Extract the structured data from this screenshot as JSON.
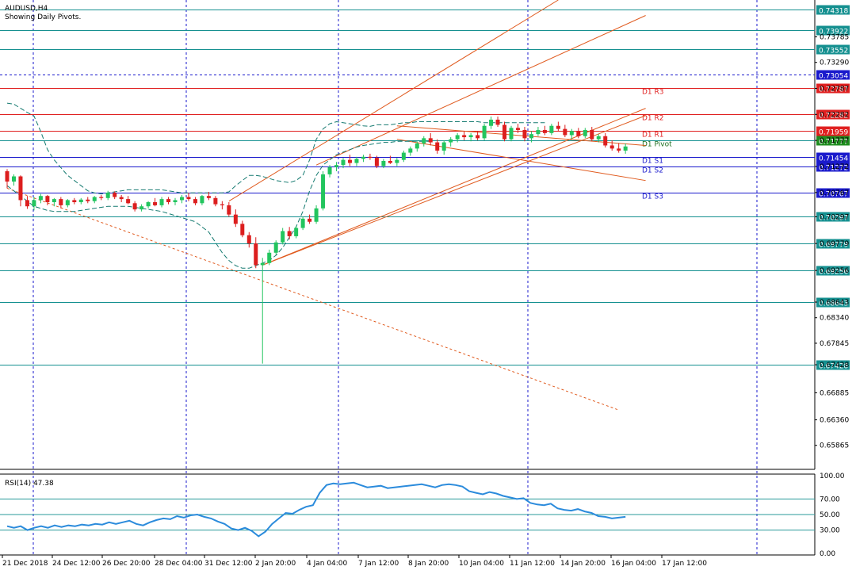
{
  "header": {
    "symbol": "AUDUSD,H4",
    "subtitle": "Showing Daily Pivots."
  },
  "rsi_panel": {
    "label": "RSI(14) 47.38"
  },
  "colors": {
    "background": "#ffffff",
    "bull": "#22c55e",
    "bear": "#dc1e1e",
    "pivot_line": "#159090",
    "resistance_line": "#e02020",
    "support_line": "#1a1acc",
    "separator": "#1a1acc",
    "channel": "#e05a1e",
    "envelope": "#157a70",
    "rsi_line": "#2b8bdc",
    "rsi_level": "#2a9a9a",
    "price_tag_blue": "#1a1acc",
    "price_tag_red": "#e02020",
    "price_tag_teal": "#159090",
    "price_tag_green": "#1e8c1e"
  },
  "chart_data": {
    "type": "candlestick",
    "title": "AUDUSD,H4",
    "subtitle": "Showing Daily Pivots.",
    "ylim": [
      0.654,
      0.745
    ],
    "price_ticks": [
      "0.73785",
      "0.73290",
      "0.72787",
      "0.72282",
      "0.71777",
      "0.71272",
      "0.70767",
      "0.70297",
      "0.69779",
      "0.69256",
      "0.68643",
      "0.68340",
      "0.67845",
      "0.67428",
      "0.66885",
      "0.66360",
      "0.65865"
    ],
    "time_labels": [
      "21 Dec 2018",
      "24 Dec 12:00",
      "26 Dec 20:00",
      "28 Dec 04:00",
      "31 Dec 12:00",
      "2 Jan 20:00",
      "4 Jan 04:00",
      "7 Jan 12:00",
      "8 Jan 20:00",
      "10 Jan 04:00",
      "11 Jan 12:00",
      "14 Jan 20:00",
      "16 Jan 04:00",
      "17 Jan 12:00"
    ],
    "horizontal_levels": [
      {
        "price": 0.74318,
        "color": "#159090",
        "tag": "0.74318",
        "tag_color": "#159090",
        "dashed": false
      },
      {
        "price": 0.73922,
        "color": "#159090",
        "tag": "0.73922",
        "tag_color": "#159090",
        "dashed": false
      },
      {
        "price": 0.73552,
        "color": "#159090",
        "tag": "0.73552",
        "tag_color": "#159090",
        "dashed": false
      },
      {
        "price": 0.73054,
        "color": "#1a1acc",
        "tag": "0.73054",
        "tag_color": "#1a1acc",
        "dashed": true
      },
      {
        "price": 0.72787,
        "color": "#e02020",
        "tag": "0.72787",
        "tag_color": "#e02020",
        "dashed": false,
        "label": "D1 R3"
      },
      {
        "price": 0.72282,
        "color": "#e02020",
        "tag": "0.72282",
        "tag_color": "#e02020",
        "dashed": false,
        "label": "D1 R2"
      },
      {
        "price": 0.71959,
        "color": "#e02020",
        "tag": "0.71959",
        "tag_color": "#e02020",
        "dashed": false,
        "label": "D1 R1"
      },
      {
        "price": 0.71777,
        "color": "#159090",
        "tag": "0.71777",
        "tag_color": "#1e8c1e",
        "dashed": false,
        "label": "D1 Pivot"
      },
      {
        "price": 0.71454,
        "color": "#1a1acc",
        "tag": "0.71454",
        "tag_color": "#1a1acc",
        "dashed": false,
        "label": "D1 S1"
      },
      {
        "price": 0.71272,
        "color": "#1a1acc",
        "tag": "0.71272",
        "tag_color": "#1a1acc",
        "dashed": false,
        "label": "D1 S2"
      },
      {
        "price": 0.70767,
        "color": "#1a1acc",
        "tag": "0.70767",
        "tag_color": "#1a1acc",
        "dashed": false,
        "label": "D1 S3"
      },
      {
        "price": 0.70297,
        "color": "#159090",
        "tag": "0.70297",
        "tag_color": "#159090",
        "dashed": false
      },
      {
        "price": 0.69779,
        "color": "#159090",
        "tag": "0.69779",
        "tag_color": "#159090",
        "dashed": false
      },
      {
        "price": 0.69256,
        "color": "#159090",
        "tag": "0.69256",
        "tag_color": "#159090",
        "dashed": false
      },
      {
        "price": 0.68643,
        "color": "#159090",
        "tag": "0.68643",
        "tag_color": "#159090",
        "dashed": false
      },
      {
        "price": 0.67428,
        "color": "#159090",
        "tag": "0.67428",
        "tag_color": "#159090",
        "dashed": false
      }
    ],
    "candles": [
      {
        "o": 0.7118,
        "h": 0.7122,
        "l": 0.7085,
        "c": 0.7098
      },
      {
        "o": 0.7098,
        "h": 0.7112,
        "l": 0.709,
        "c": 0.7108
      },
      {
        "o": 0.7108,
        "h": 0.711,
        "l": 0.705,
        "c": 0.7062
      },
      {
        "o": 0.7062,
        "h": 0.707,
        "l": 0.7045,
        "c": 0.705
      },
      {
        "o": 0.705,
        "h": 0.7068,
        "l": 0.7042,
        "c": 0.7062
      },
      {
        "o": 0.7062,
        "h": 0.7074,
        "l": 0.7056,
        "c": 0.707
      },
      {
        "o": 0.707,
        "h": 0.7072,
        "l": 0.7052,
        "c": 0.7058
      },
      {
        "o": 0.7058,
        "h": 0.7066,
        "l": 0.705,
        "c": 0.7064
      },
      {
        "o": 0.7064,
        "h": 0.7068,
        "l": 0.7046,
        "c": 0.7052
      },
      {
        "o": 0.7052,
        "h": 0.7064,
        "l": 0.7048,
        "c": 0.7062
      },
      {
        "o": 0.7062,
        "h": 0.7066,
        "l": 0.7054,
        "c": 0.7058
      },
      {
        "o": 0.7058,
        "h": 0.7066,
        "l": 0.7054,
        "c": 0.7063
      },
      {
        "o": 0.7063,
        "h": 0.7068,
        "l": 0.7056,
        "c": 0.706
      },
      {
        "o": 0.706,
        "h": 0.707,
        "l": 0.7056,
        "c": 0.7068
      },
      {
        "o": 0.7068,
        "h": 0.7072,
        "l": 0.7062,
        "c": 0.7066
      },
      {
        "o": 0.7066,
        "h": 0.708,
        "l": 0.7062,
        "c": 0.7076
      },
      {
        "o": 0.7076,
        "h": 0.7079,
        "l": 0.7064,
        "c": 0.7068
      },
      {
        "o": 0.7068,
        "h": 0.7072,
        "l": 0.7058,
        "c": 0.7064
      },
      {
        "o": 0.7064,
        "h": 0.707,
        "l": 0.7054,
        "c": 0.7056
      },
      {
        "o": 0.7056,
        "h": 0.706,
        "l": 0.704,
        "c": 0.7044
      },
      {
        "o": 0.7044,
        "h": 0.7054,
        "l": 0.704,
        "c": 0.705
      },
      {
        "o": 0.705,
        "h": 0.706,
        "l": 0.7046,
        "c": 0.7058
      },
      {
        "o": 0.7058,
        "h": 0.7066,
        "l": 0.705,
        "c": 0.7052
      },
      {
        "o": 0.7052,
        "h": 0.7068,
        "l": 0.7048,
        "c": 0.7064
      },
      {
        "o": 0.7064,
        "h": 0.7068,
        "l": 0.7054,
        "c": 0.7058
      },
      {
        "o": 0.7058,
        "h": 0.7066,
        "l": 0.7052,
        "c": 0.7062
      },
      {
        "o": 0.7062,
        "h": 0.7072,
        "l": 0.7056,
        "c": 0.7068
      },
      {
        "o": 0.7068,
        "h": 0.7076,
        "l": 0.706,
        "c": 0.7064
      },
      {
        "o": 0.7064,
        "h": 0.7068,
        "l": 0.7052,
        "c": 0.7056
      },
      {
        "o": 0.7056,
        "h": 0.7072,
        "l": 0.7052,
        "c": 0.707
      },
      {
        "o": 0.707,
        "h": 0.7078,
        "l": 0.7062,
        "c": 0.7066
      },
      {
        "o": 0.7066,
        "h": 0.707,
        "l": 0.705,
        "c": 0.7054
      },
      {
        "o": 0.7054,
        "h": 0.706,
        "l": 0.7044,
        "c": 0.7052
      },
      {
        "o": 0.7052,
        "h": 0.7058,
        "l": 0.703,
        "c": 0.7034
      },
      {
        "o": 0.7034,
        "h": 0.7044,
        "l": 0.701,
        "c": 0.7016
      },
      {
        "o": 0.7016,
        "h": 0.7022,
        "l": 0.699,
        "c": 0.6994
      },
      {
        "o": 0.6994,
        "h": 0.7,
        "l": 0.697,
        "c": 0.6978
      },
      {
        "o": 0.6978,
        "h": 0.699,
        "l": 0.693,
        "c": 0.6936
      },
      {
        "o": 0.6936,
        "h": 0.695,
        "l": 0.6745,
        "c": 0.694
      },
      {
        "o": 0.694,
        "h": 0.6966,
        "l": 0.6936,
        "c": 0.696
      },
      {
        "o": 0.696,
        "h": 0.6984,
        "l": 0.6956,
        "c": 0.698
      },
      {
        "o": 0.698,
        "h": 0.7008,
        "l": 0.6976,
        "c": 0.7002
      },
      {
        "o": 0.7002,
        "h": 0.701,
        "l": 0.6986,
        "c": 0.6992
      },
      {
        "o": 0.6992,
        "h": 0.7012,
        "l": 0.6988,
        "c": 0.7008
      },
      {
        "o": 0.7008,
        "h": 0.703,
        "l": 0.7004,
        "c": 0.7026
      },
      {
        "o": 0.7026,
        "h": 0.7034,
        "l": 0.7016,
        "c": 0.702
      },
      {
        "o": 0.702,
        "h": 0.7052,
        "l": 0.7016,
        "c": 0.7046
      },
      {
        "o": 0.7046,
        "h": 0.7118,
        "l": 0.7042,
        "c": 0.7112
      },
      {
        "o": 0.7112,
        "h": 0.713,
        "l": 0.7106,
        "c": 0.7126
      },
      {
        "o": 0.7126,
        "h": 0.7136,
        "l": 0.7118,
        "c": 0.713
      },
      {
        "o": 0.713,
        "h": 0.7144,
        "l": 0.7124,
        "c": 0.714
      },
      {
        "o": 0.714,
        "h": 0.715,
        "l": 0.7128,
        "c": 0.7134
      },
      {
        "o": 0.7134,
        "h": 0.7146,
        "l": 0.7128,
        "c": 0.7142
      },
      {
        "o": 0.7142,
        "h": 0.715,
        "l": 0.7136,
        "c": 0.7146
      },
      {
        "o": 0.7146,
        "h": 0.7152,
        "l": 0.714,
        "c": 0.7144
      },
      {
        "o": 0.7144,
        "h": 0.7148,
        "l": 0.7124,
        "c": 0.7128
      },
      {
        "o": 0.7128,
        "h": 0.7142,
        "l": 0.7124,
        "c": 0.7138
      },
      {
        "o": 0.7138,
        "h": 0.7148,
        "l": 0.7132,
        "c": 0.7134
      },
      {
        "o": 0.7134,
        "h": 0.7144,
        "l": 0.7128,
        "c": 0.714
      },
      {
        "o": 0.714,
        "h": 0.7158,
        "l": 0.7136,
        "c": 0.7154
      },
      {
        "o": 0.7154,
        "h": 0.7166,
        "l": 0.7148,
        "c": 0.7162
      },
      {
        "o": 0.7162,
        "h": 0.7176,
        "l": 0.7156,
        "c": 0.7172
      },
      {
        "o": 0.7172,
        "h": 0.7186,
        "l": 0.7166,
        "c": 0.7182
      },
      {
        "o": 0.7182,
        "h": 0.7192,
        "l": 0.7168,
        "c": 0.7174
      },
      {
        "o": 0.7174,
        "h": 0.718,
        "l": 0.7152,
        "c": 0.7158
      },
      {
        "o": 0.7158,
        "h": 0.7178,
        "l": 0.715,
        "c": 0.7174
      },
      {
        "o": 0.7174,
        "h": 0.7184,
        "l": 0.7166,
        "c": 0.718
      },
      {
        "o": 0.718,
        "h": 0.7192,
        "l": 0.7174,
        "c": 0.7188
      },
      {
        "o": 0.7188,
        "h": 0.7196,
        "l": 0.7178,
        "c": 0.7184
      },
      {
        "o": 0.7184,
        "h": 0.7192,
        "l": 0.7176,
        "c": 0.7188
      },
      {
        "o": 0.7188,
        "h": 0.7196,
        "l": 0.7178,
        "c": 0.7182
      },
      {
        "o": 0.7182,
        "h": 0.721,
        "l": 0.7178,
        "c": 0.7206
      },
      {
        "o": 0.7206,
        "h": 0.7224,
        "l": 0.72,
        "c": 0.7218
      },
      {
        "o": 0.7218,
        "h": 0.7224,
        "l": 0.7204,
        "c": 0.7208
      },
      {
        "o": 0.7208,
        "h": 0.7214,
        "l": 0.7176,
        "c": 0.718
      },
      {
        "o": 0.718,
        "h": 0.7206,
        "l": 0.7176,
        "c": 0.7202
      },
      {
        "o": 0.7202,
        "h": 0.721,
        "l": 0.7192,
        "c": 0.7198
      },
      {
        "o": 0.7198,
        "h": 0.7204,
        "l": 0.7176,
        "c": 0.7182
      },
      {
        "o": 0.7182,
        "h": 0.7196,
        "l": 0.7174,
        "c": 0.719
      },
      {
        "o": 0.719,
        "h": 0.7204,
        "l": 0.7186,
        "c": 0.7198
      },
      {
        "o": 0.7198,
        "h": 0.7206,
        "l": 0.7188,
        "c": 0.7192
      },
      {
        "o": 0.7192,
        "h": 0.721,
        "l": 0.7188,
        "c": 0.7206
      },
      {
        "o": 0.7206,
        "h": 0.7214,
        "l": 0.7196,
        "c": 0.72
      },
      {
        "o": 0.72,
        "h": 0.7208,
        "l": 0.7184,
        "c": 0.7188
      },
      {
        "o": 0.7188,
        "h": 0.72,
        "l": 0.718,
        "c": 0.7196
      },
      {
        "o": 0.7196,
        "h": 0.7202,
        "l": 0.7182,
        "c": 0.7186
      },
      {
        "o": 0.7186,
        "h": 0.7202,
        "l": 0.7182,
        "c": 0.7198
      },
      {
        "o": 0.7198,
        "h": 0.7204,
        "l": 0.7176,
        "c": 0.718
      },
      {
        "o": 0.718,
        "h": 0.719,
        "l": 0.7174,
        "c": 0.7186
      },
      {
        "o": 0.7186,
        "h": 0.7192,
        "l": 0.7164,
        "c": 0.7168
      },
      {
        "o": 0.7168,
        "h": 0.7178,
        "l": 0.7158,
        "c": 0.7162
      },
      {
        "o": 0.7162,
        "h": 0.7172,
        "l": 0.7154,
        "c": 0.7158
      },
      {
        "o": 0.7158,
        "h": 0.7172,
        "l": 0.7152,
        "c": 0.7166
      }
    ],
    "trendlines": [
      {
        "x1": 0,
        "p1": 0.7085,
        "x2": 91,
        "p2": 0.6655,
        "dashed": true
      },
      {
        "x1": 33,
        "p1": 0.706,
        "x2": 82,
        "p2": 0.745,
        "dashed": false
      },
      {
        "x1": 38,
        "p1": 0.6936,
        "x2": 95,
        "p2": 0.7226,
        "dashed": false
      },
      {
        "x1": 38,
        "p1": 0.6936,
        "x2": 95,
        "p2": 0.724,
        "dashed": false
      },
      {
        "x1": 46,
        "p1": 0.713,
        "x2": 95,
        "p2": 0.742,
        "dashed": false
      },
      {
        "x1": 58,
        "p1": 0.7206,
        "x2": 95,
        "p2": 0.7168,
        "dashed": false
      },
      {
        "x1": 58,
        "p1": 0.718,
        "x2": 95,
        "p2": 0.71,
        "dashed": false
      }
    ],
    "envelope_upper": [
      0.725,
      0.7248,
      0.724,
      0.7232,
      0.7225,
      0.7195,
      0.716,
      0.714,
      0.7125,
      0.711,
      0.71,
      0.709,
      0.708,
      0.7076,
      0.7074,
      0.7076,
      0.7078,
      0.708,
      0.7082,
      0.7082,
      0.7082,
      0.7082,
      0.7082,
      0.7082,
      0.708,
      0.7078,
      0.7076,
      0.7076,
      0.7076,
      0.7076,
      0.7076,
      0.7076,
      0.7076,
      0.7078,
      0.709,
      0.71,
      0.711,
      0.711,
      0.7108,
      0.7104,
      0.71,
      0.7098,
      0.7096,
      0.71,
      0.711,
      0.714,
      0.718,
      0.72,
      0.721,
      0.7214,
      0.7212,
      0.721,
      0.7208,
      0.7206,
      0.7205,
      0.7208,
      0.7208,
      0.7208,
      0.721,
      0.7212,
      0.7212,
      0.7214,
      0.7214,
      0.7214,
      0.7214,
      0.7214,
      0.7214,
      0.7214,
      0.7214,
      0.7214,
      0.7214,
      0.7212,
      0.7212,
      0.7212,
      0.7212,
      0.7212,
      0.7212,
      0.7212,
      0.7212,
      0.7212,
      0.7212
    ],
    "envelope_lower": [
      0.709,
      0.708,
      0.707,
      0.706,
      0.705,
      0.7046,
      0.7042,
      0.704,
      0.704,
      0.704,
      0.704,
      0.7042,
      0.7044,
      0.7046,
      0.7048,
      0.705,
      0.705,
      0.705,
      0.705,
      0.7048,
      0.7046,
      0.7044,
      0.7042,
      0.704,
      0.7036,
      0.7032,
      0.7028,
      0.7024,
      0.702,
      0.701,
      0.7,
      0.698,
      0.696,
      0.6945,
      0.6935,
      0.693,
      0.693,
      0.6935,
      0.694,
      0.6945,
      0.6955,
      0.697,
      0.699,
      0.701,
      0.704,
      0.708,
      0.711,
      0.713,
      0.714,
      0.715,
      0.7155,
      0.716,
      0.7165,
      0.7168,
      0.717,
      0.7172,
      0.7174,
      0.7174,
      0.7176,
      0.7176,
      0.7176,
      0.7176,
      0.7176,
      0.7176
    ],
    "rsi": {
      "label": "RSI(14) 47.38",
      "value": 47.38,
      "ylim": [
        0,
        100
      ],
      "ticks": [
        "100.00",
        "70.00",
        "50.00",
        "30.00",
        "0.00"
      ],
      "levels": [
        70,
        50,
        30
      ],
      "values": [
        35,
        33,
        35,
        30,
        33,
        35,
        33,
        36,
        34,
        36,
        35,
        37,
        36,
        38,
        37,
        40,
        38,
        40,
        42,
        38,
        36,
        40,
        43,
        45,
        44,
        48,
        46,
        49,
        50,
        47,
        45,
        41,
        38,
        32,
        30,
        33,
        29,
        22,
        28,
        38,
        45,
        52,
        51,
        56,
        60,
        62,
        78,
        88,
        90,
        89,
        90,
        91,
        88,
        85,
        86,
        87,
        84,
        85,
        86,
        87,
        88,
        89,
        87,
        85,
        88,
        89,
        88,
        86,
        80,
        78,
        76,
        79,
        77,
        74,
        72,
        70,
        71,
        65,
        63,
        62,
        64,
        58,
        56,
        55,
        57,
        54,
        52,
        48,
        47,
        45,
        46,
        47
      ]
    }
  }
}
